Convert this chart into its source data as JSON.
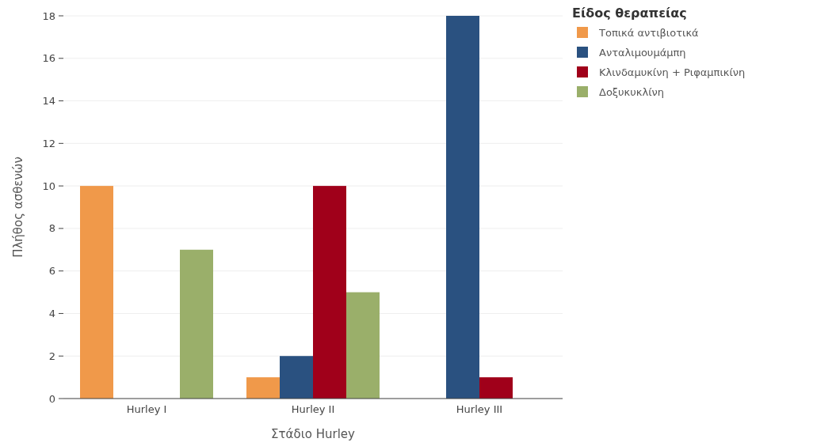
{
  "chart_data": {
    "type": "bar",
    "xlabel": "Στάδιο Hurley",
    "ylabel": "Πλήθος ασθενών",
    "legend_title": "Είδος θεραπείας",
    "categories": [
      "Hurley I",
      "Hurley II",
      "Hurley III"
    ],
    "series": [
      {
        "name": "Τοπικά αντιβιοτικά",
        "color": "#f0994a",
        "values": [
          10,
          1,
          0
        ]
      },
      {
        "name": "Ανταλιμουμάμπη",
        "color": "#2a5180",
        "values": [
          0,
          2,
          18
        ]
      },
      {
        "name": "Κλινδαμυκίνη + Ριφαμπικίνη",
        "color": "#a0001a",
        "values": [
          0,
          10,
          1
        ]
      },
      {
        "name": "Δοξυκυκλίνη",
        "color": "#9aaf6a",
        "values": [
          7,
          5,
          0
        ]
      }
    ],
    "ylim": [
      0,
      18
    ],
    "yticks": [
      0,
      2,
      4,
      6,
      8,
      10,
      12,
      14,
      16,
      18
    ],
    "grid": "y",
    "legend": "top right"
  }
}
